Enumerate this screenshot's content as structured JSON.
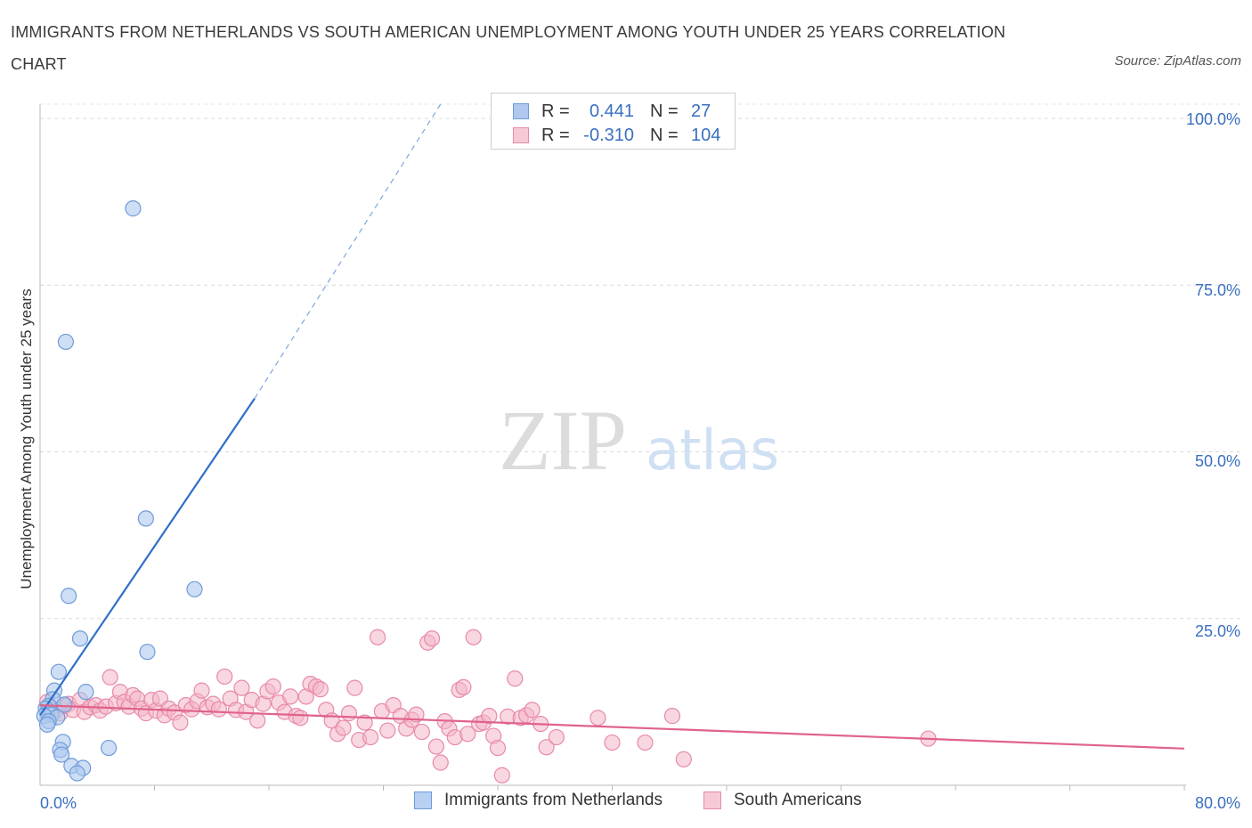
{
  "title": "IMMIGRANTS FROM NETHERLANDS VS SOUTH AMERICAN UNEMPLOYMENT AMONG YOUTH UNDER 25 YEARS CORRELATION CHART",
  "source": "Source: ZipAtlas.com",
  "watermark": {
    "zip": "ZIP",
    "atlas": "atlas"
  },
  "legend": {
    "series1": {
      "r_label": "R =",
      "r_value": "0.441",
      "n_label": "N =",
      "n_value": "27"
    },
    "series2": {
      "r_label": "R =",
      "r_value": "-0.310",
      "n_label": "N =",
      "n_value": "104"
    }
  },
  "bottom_legend": {
    "series1": "Immigrants from Netherlands",
    "series2": "South Americans"
  },
  "colors": {
    "blue_fill": "#aec8ee",
    "blue_stroke": "#6f9bd8",
    "blue_line": "#2f6fc8",
    "pink_fill": "#f4b6c9",
    "pink_stroke": "#e88aa8",
    "pink_line": "#e0628c",
    "tick_text": "#3a6fc0"
  },
  "chart_data": {
    "type": "scatter",
    "title": "IMMIGRANTS FROM NETHERLANDS VS SOUTH AMERICAN UNEMPLOYMENT AMONG YOUTH UNDER 25 YEARS CORRELATION CHART",
    "xlabel": "",
    "ylabel": "Unemployment Among Youth under 25 years",
    "xlim": [
      0,
      80
    ],
    "ylim": [
      0,
      100
    ],
    "x_tick_labels": [
      "0.0%",
      "80.0%"
    ],
    "y_tick_labels": [
      "100.0%",
      "75.0%",
      "50.0%",
      "25.0%"
    ],
    "y_ticks": [
      100,
      75,
      50,
      25
    ],
    "x_minor_ticks": [
      8,
      16,
      24,
      32,
      40,
      48,
      56,
      64,
      72,
      80
    ],
    "grid": true,
    "series": [
      {
        "name": "Immigrants from Netherlands",
        "trend": {
          "x0": 0,
          "y0": 10.5,
          "x1": 15,
          "y1": 58,
          "dash_x1": 28,
          "dash_y1": 100
        },
        "points": [
          [
            6.5,
            86.5
          ],
          [
            1.8,
            66.5
          ],
          [
            7.4,
            40
          ],
          [
            10.8,
            29.4
          ],
          [
            2,
            28.4
          ],
          [
            2.8,
            22
          ],
          [
            7.5,
            20
          ],
          [
            1.3,
            17
          ],
          [
            3.2,
            14
          ],
          [
            1,
            14.2
          ],
          [
            0.9,
            12.9
          ],
          [
            0.6,
            11.9
          ],
          [
            1.7,
            12.1
          ],
          [
            0.4,
            11.5
          ],
          [
            0.5,
            10.9
          ],
          [
            0.8,
            10.6
          ],
          [
            0.3,
            10.4
          ],
          [
            1.2,
            10.2
          ],
          [
            0.6,
            9.6
          ],
          [
            0.5,
            9.1
          ],
          [
            4.8,
            5.6
          ],
          [
            1.6,
            6.5
          ],
          [
            1.4,
            5.3
          ],
          [
            1.5,
            4.6
          ],
          [
            2.2,
            2.9
          ],
          [
            3,
            2.6
          ],
          [
            2.6,
            1.8
          ]
        ]
      },
      {
        "name": "South Americans",
        "trend": {
          "x0": 0,
          "y0": 12,
          "x1": 80,
          "y1": 5.5
        },
        "points": [
          [
            0.5,
            12.5
          ],
          [
            0.8,
            11.6
          ],
          [
            1.1,
            11.2
          ],
          [
            1.4,
            10.8
          ],
          [
            1.7,
            11.9
          ],
          [
            2.0,
            12.2
          ],
          [
            2.3,
            11.3
          ],
          [
            2.8,
            12.8
          ],
          [
            3.1,
            11.0
          ],
          [
            3.5,
            11.7
          ],
          [
            3.9,
            12.0
          ],
          [
            4.2,
            11.2
          ],
          [
            4.6,
            11.8
          ],
          [
            4.9,
            16.2
          ],
          [
            5.3,
            12.3
          ],
          [
            5.6,
            14.0
          ],
          [
            5.9,
            12.5
          ],
          [
            6.2,
            11.8
          ],
          [
            6.5,
            13.5
          ],
          [
            6.8,
            13.0
          ],
          [
            7.1,
            11.5
          ],
          [
            7.4,
            10.8
          ],
          [
            7.8,
            12.8
          ],
          [
            8.1,
            11.2
          ],
          [
            8.4,
            13.0
          ],
          [
            8.7,
            10.5
          ],
          [
            9.0,
            11.5
          ],
          [
            9.4,
            10.9
          ],
          [
            9.8,
            9.4
          ],
          [
            10.2,
            12.0
          ],
          [
            10.6,
            11.4
          ],
          [
            11.0,
            12.6
          ],
          [
            11.3,
            14.2
          ],
          [
            11.7,
            11.7
          ],
          [
            12.1,
            12.2
          ],
          [
            12.5,
            11.4
          ],
          [
            12.9,
            16.3
          ],
          [
            13.3,
            13.0
          ],
          [
            13.7,
            11.3
          ],
          [
            14.1,
            14.6
          ],
          [
            14.4,
            11.0
          ],
          [
            14.8,
            12.8
          ],
          [
            15.2,
            9.7
          ],
          [
            15.6,
            12.2
          ],
          [
            15.9,
            14.1
          ],
          [
            16.3,
            14.8
          ],
          [
            16.7,
            12.4
          ],
          [
            17.1,
            11.0
          ],
          [
            17.5,
            13.3
          ],
          [
            17.9,
            10.4
          ],
          [
            18.2,
            10.1
          ],
          [
            18.6,
            13.3
          ],
          [
            18.9,
            15.2
          ],
          [
            19.3,
            14.8
          ],
          [
            19.6,
            14.4
          ],
          [
            20.0,
            11.3
          ],
          [
            20.4,
            9.7
          ],
          [
            20.8,
            7.7
          ],
          [
            21.2,
            8.6
          ],
          [
            21.6,
            10.8
          ],
          [
            22.0,
            14.6
          ],
          [
            22.3,
            6.8
          ],
          [
            22.7,
            9.4
          ],
          [
            23.1,
            7.2
          ],
          [
            23.6,
            22.2
          ],
          [
            23.9,
            11.1
          ],
          [
            24.3,
            8.2
          ],
          [
            24.7,
            12.0
          ],
          [
            25.2,
            10.4
          ],
          [
            25.6,
            8.5
          ],
          [
            26.0,
            9.8
          ],
          [
            26.3,
            10.6
          ],
          [
            26.7,
            8.0
          ],
          [
            27.1,
            21.4
          ],
          [
            27.4,
            22.0
          ],
          [
            27.7,
            5.8
          ],
          [
            28.0,
            3.4
          ],
          [
            28.3,
            9.6
          ],
          [
            28.6,
            8.5
          ],
          [
            29.0,
            7.2
          ],
          [
            29.3,
            14.3
          ],
          [
            29.6,
            14.7
          ],
          [
            29.9,
            7.7
          ],
          [
            30.3,
            22.2
          ],
          [
            30.7,
            9.2
          ],
          [
            31.0,
            9.4
          ],
          [
            31.4,
            10.4
          ],
          [
            31.7,
            7.4
          ],
          [
            32.0,
            5.6
          ],
          [
            32.3,
            1.5
          ],
          [
            32.7,
            10.3
          ],
          [
            33.2,
            16.0
          ],
          [
            33.6,
            10.1
          ],
          [
            34.0,
            10.5
          ],
          [
            34.4,
            11.3
          ],
          [
            35.0,
            9.2
          ],
          [
            35.4,
            5.7
          ],
          [
            36.1,
            7.2
          ],
          [
            39.0,
            10.1
          ],
          [
            40.0,
            6.4
          ],
          [
            42.3,
            6.4
          ],
          [
            44.2,
            10.4
          ],
          [
            45.0,
            3.9
          ],
          [
            62.1,
            7.0
          ]
        ]
      }
    ]
  }
}
